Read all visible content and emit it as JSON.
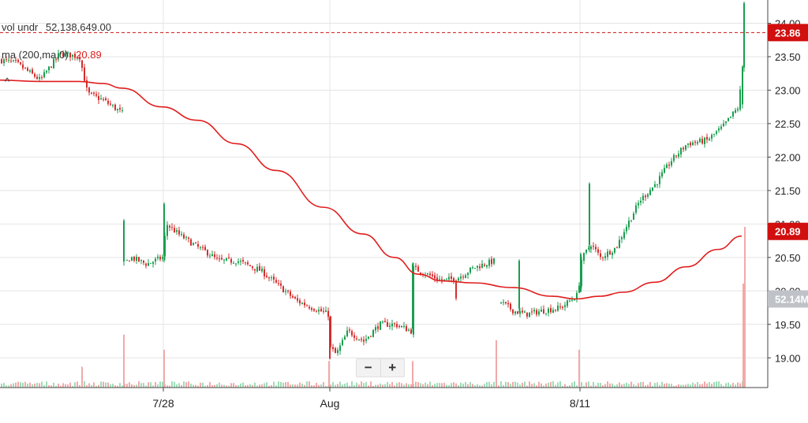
{
  "chart_data": {
    "type": "candlestick",
    "ylim": [
      18.65,
      24.3
    ],
    "y_ticks": [
      19.0,
      19.5,
      20.0,
      20.5,
      21.0,
      21.5,
      22.0,
      22.5,
      23.0,
      23.5,
      24.0
    ],
    "y_tick_labels": [
      "19.00",
      "19.50",
      "20.00",
      "20.50",
      "21.00",
      "21.50",
      "22.00",
      "22.50",
      "23.00",
      "23.50",
      "24.00"
    ],
    "x_labels": [
      "7/28",
      "Aug",
      "8/11"
    ],
    "grid": true,
    "reference_line": 23.86,
    "price_anchors": [
      [
        0,
        23.45
      ],
      [
        20,
        23.4
      ],
      [
        50,
        23.15
      ],
      [
        75,
        23.55
      ],
      [
        100,
        23.5
      ],
      [
        110,
        22.95
      ],
      [
        130,
        22.85
      ],
      [
        155,
        22.65
      ],
      [
        156,
        20.4
      ],
      [
        165,
        20.5
      ],
      [
        185,
        20.4
      ],
      [
        205,
        20.5
      ],
      [
        210,
        21.0
      ],
      [
        225,
        20.85
      ],
      [
        250,
        20.65
      ],
      [
        265,
        20.55
      ],
      [
        275,
        20.45
      ],
      [
        300,
        20.45
      ],
      [
        330,
        20.3
      ],
      [
        355,
        20.05
      ],
      [
        375,
        19.85
      ],
      [
        395,
        19.75
      ],
      [
        415,
        19.65
      ],
      [
        418,
        19.15
      ],
      [
        425,
        19.05
      ],
      [
        440,
        19.4
      ],
      [
        460,
        19.25
      ],
      [
        480,
        19.5
      ],
      [
        500,
        19.5
      ],
      [
        520,
        19.4
      ],
      [
        521,
        20.35
      ],
      [
        540,
        20.25
      ],
      [
        560,
        20.15
      ],
      [
        580,
        20.2
      ],
      [
        600,
        20.35
      ],
      [
        626,
        20.45
      ],
      [
        632,
        19.85
      ],
      [
        650,
        19.7
      ],
      [
        665,
        19.65
      ],
      [
        685,
        19.7
      ],
      [
        710,
        19.75
      ],
      [
        732,
        19.95
      ],
      [
        735,
        20.45
      ],
      [
        748,
        20.7
      ],
      [
        760,
        20.5
      ],
      [
        780,
        20.65
      ],
      [
        790,
        20.9
      ],
      [
        810,
        21.35
      ],
      [
        830,
        21.6
      ],
      [
        850,
        21.95
      ],
      [
        870,
        22.2
      ],
      [
        895,
        22.25
      ],
      [
        915,
        22.45
      ],
      [
        935,
        22.75
      ],
      [
        940,
        23.33
      ]
    ],
    "ma_anchors": [
      [
        0,
        23.15
      ],
      [
        50,
        23.13
      ],
      [
        100,
        23.13
      ],
      [
        130,
        23.1
      ],
      [
        155,
        23.03
      ],
      [
        205,
        22.75
      ],
      [
        250,
        22.55
      ],
      [
        300,
        22.2
      ],
      [
        350,
        21.8
      ],
      [
        410,
        21.25
      ],
      [
        460,
        20.85
      ],
      [
        500,
        20.5
      ],
      [
        530,
        20.25
      ],
      [
        560,
        20.15
      ],
      [
        600,
        20.12
      ],
      [
        650,
        20.05
      ],
      [
        700,
        19.92
      ],
      [
        730,
        19.88
      ],
      [
        760,
        19.92
      ],
      [
        790,
        19.98
      ],
      [
        830,
        20.13
      ],
      [
        870,
        20.36
      ],
      [
        910,
        20.62
      ],
      [
        940,
        20.82
      ]
    ],
    "gaps": [
      [
        156,
        159
      ],
      [
        418,
        420
      ],
      [
        521,
        523
      ],
      [
        627,
        633
      ],
      [
        733,
        736
      ]
    ],
    "volume_spikes": [
      [
        156,
        0.28
      ],
      [
        207,
        0.2
      ],
      [
        416,
        0.14
      ],
      [
        522,
        0.14
      ],
      [
        628,
        0.25
      ],
      [
        733,
        0.2
      ],
      [
        941,
        0.55
      ],
      [
        943,
        0.85
      ],
      [
        103,
        0.11
      ]
    ],
    "series": [
      {
        "name": "vol undr",
        "last": 52138649.0
      },
      {
        "name": "ma (200,ma,0)",
        "last": 20.89
      }
    ],
    "last_price": 23.86,
    "ma_last": 20.89,
    "volume_label": "52.14M"
  },
  "legend": {
    "vol_label": "vol undr",
    "vol_value": "52,138,649.00",
    "ma_label": "ma (200,ma,0)",
    "ma_value": "20.89"
  },
  "badges": {
    "price": "23.86",
    "ma": "20.89",
    "volume": "52.14M"
  },
  "controls": {
    "zoom_out": "−",
    "zoom_in": "+",
    "collapse": "^"
  },
  "colors": {
    "up": "#1a9e4f",
    "down": "#d42d2d",
    "ma": "#e01e1e",
    "badge_red": "#d10f0f",
    "badge_gray": "#bfc3c8",
    "grid": "#e4e4e4"
  }
}
